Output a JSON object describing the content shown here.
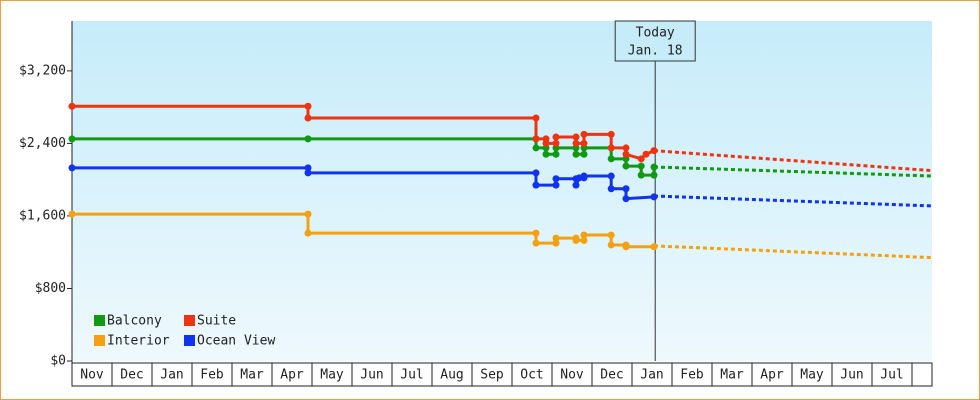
{
  "chart_data": {
    "type": "line",
    "xlim": [
      0,
      21.5
    ],
    "xticks": [
      {
        "value": 0.5,
        "label": "Nov"
      },
      {
        "value": 1.5,
        "label": "Dec"
      },
      {
        "value": 2.5,
        "label": "Jan"
      },
      {
        "value": 3.5,
        "label": "Feb"
      },
      {
        "value": 4.5,
        "label": "Mar"
      },
      {
        "value": 5.5,
        "label": "Apr"
      },
      {
        "value": 6.5,
        "label": "May"
      },
      {
        "value": 7.5,
        "label": "Jun"
      },
      {
        "value": 8.5,
        "label": "Jul"
      },
      {
        "value": 9.5,
        "label": "Aug"
      },
      {
        "value": 10.5,
        "label": "Sep"
      },
      {
        "value": 11.5,
        "label": "Oct"
      },
      {
        "value": 12.5,
        "label": "Nov"
      },
      {
        "value": 13.5,
        "label": "Dec"
      },
      {
        "value": 14.5,
        "label": "Jan"
      },
      {
        "value": 15.5,
        "label": "Feb"
      },
      {
        "value": 16.5,
        "label": "Mar"
      },
      {
        "value": 17.5,
        "label": "Apr"
      },
      {
        "value": 18.5,
        "label": "May"
      },
      {
        "value": 19.5,
        "label": "Jun"
      },
      {
        "value": 20.5,
        "label": "Jul"
      }
    ],
    "ylim": [
      0,
      3750
    ],
    "yticks": [
      {
        "value": 0,
        "label": "$0"
      },
      {
        "value": 800,
        "label": "$800"
      },
      {
        "value": 1600,
        "label": "$1,600"
      },
      {
        "value": 2400,
        "label": "$2,400"
      },
      {
        "value": 3200,
        "label": "$3,200"
      }
    ],
    "today": {
      "x": 14.58,
      "label": "Today",
      "date": "Jan. 18"
    },
    "series": [
      {
        "name": "Balcony",
        "color": "#119911",
        "x": [
          0,
          5.9,
          11.6,
          11.6,
          11.85,
          11.85,
          12.1,
          12.1,
          12.6,
          12.6,
          12.8,
          12.8,
          13.48,
          13.48,
          13.85,
          13.85,
          14.23,
          14.23,
          14.55,
          14.55
        ],
        "values": [
          2450,
          2450,
          2450,
          2350,
          2350,
          2280,
          2280,
          2350,
          2350,
          2280,
          2280,
          2350,
          2350,
          2230,
          2230,
          2150,
          2150,
          2050,
          2050,
          2140
        ],
        "forecast": {
          "x": [
            14.55,
            21.5
          ],
          "values": [
            2140,
            2040
          ]
        }
      },
      {
        "name": "Suite",
        "color": "#ee3311",
        "x": [
          0,
          5.9,
          5.9,
          11.6,
          11.6,
          11.85,
          11.85,
          12.1,
          12.1,
          12.6,
          12.6,
          12.8,
          12.8,
          13.48,
          13.48,
          13.85,
          13.85,
          14.23,
          14.35,
          14.55
        ],
        "values": [
          2810,
          2810,
          2680,
          2680,
          2450,
          2450,
          2400,
          2400,
          2470,
          2470,
          2400,
          2400,
          2500,
          2500,
          2350,
          2350,
          2280,
          2230,
          2280,
          2320
        ],
        "forecast": {
          "x": [
            14.55,
            21.5
          ],
          "values": [
            2320,
            2100
          ]
        }
      },
      {
        "name": "Interior",
        "color": "#f5a011",
        "x": [
          0,
          5.9,
          5.9,
          11.6,
          11.6,
          12.1,
          12.1,
          12.6,
          12.6,
          12.8,
          12.8,
          13.48,
          13.48,
          13.85,
          13.85,
          14.55
        ],
        "values": [
          1620,
          1620,
          1410,
          1410,
          1300,
          1300,
          1355,
          1355,
          1330,
          1330,
          1390,
          1390,
          1280,
          1280,
          1260,
          1260
        ],
        "forecast": {
          "x": [
            14.55,
            21.5
          ],
          "values": [
            1270,
            1140
          ]
        }
      },
      {
        "name": "Ocean View",
        "color": "#1133ee",
        "x": [
          0,
          5.9,
          5.9,
          11.6,
          11.6,
          12.1,
          12.1,
          12.6,
          12.6,
          12.68,
          12.8,
          12.8,
          13.48,
          13.48,
          13.85,
          13.85,
          14.55
        ],
        "values": [
          2130,
          2130,
          2075,
          2075,
          1940,
          1940,
          2010,
          2010,
          1940,
          2020,
          2020,
          2040,
          2040,
          1900,
          1900,
          1790,
          1810
        ],
        "forecast": {
          "x": [
            14.55,
            21.5
          ],
          "values": [
            1820,
            1710
          ]
        }
      }
    ]
  }
}
